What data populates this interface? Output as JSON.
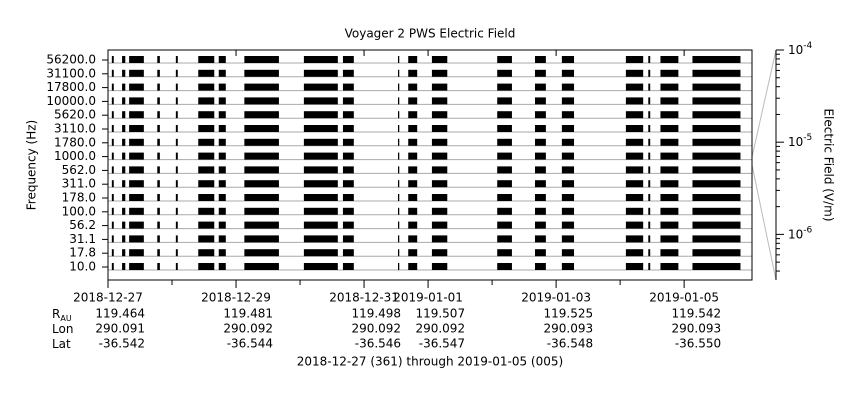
{
  "chart_data": {
    "type": "spectrogram",
    "title": "Voyager 2 PWS Electric Field",
    "ylabel": "Frequency (Hz)",
    "y2label": "Electric Field (V/m)",
    "footer": "2018-12-27 (361) through 2019-01-05 (005)",
    "channels": [
      "56200.0",
      "31100.0",
      "17800.0",
      "10000.0",
      "5620.0",
      "3110.0",
      "1780.0",
      "1000.0",
      "562.0",
      "311.0",
      "178.0",
      "100.0",
      "56.2",
      "31.1",
      "17.8",
      "10.0"
    ],
    "xlim": [
      0,
      10.06
    ],
    "xticks": [
      {
        "value": 0,
        "label": "2018-12-27"
      },
      {
        "value": 2,
        "label": "2018-12-29"
      },
      {
        "value": 4,
        "label": "2018-12-31"
      },
      {
        "value": 5,
        "label": "2019-01-01"
      },
      {
        "value": 7,
        "label": "2019-01-03"
      },
      {
        "value": 9,
        "label": "2019-01-05"
      }
    ],
    "minor_xticks": [
      1,
      3,
      6,
      8
    ],
    "y2lim": [
      3.2e-07,
      0.0001
    ],
    "y2log": true,
    "y2ticks": [
      {
        "value": 0.0001,
        "label": "10^-4"
      },
      {
        "value": 1e-05,
        "label": "10^-5"
      },
      {
        "value": 1e-06,
        "label": "10^-6"
      }
    ],
    "color": "#000000",
    "grid": true,
    "segments": [
      [
        0.06,
        0.09
      ],
      [
        0.22,
        0.27
      ],
      [
        0.33,
        0.56
      ],
      [
        0.77,
        0.81
      ],
      [
        1.06,
        1.09
      ],
      [
        1.41,
        1.66
      ],
      [
        1.73,
        1.84
      ],
      [
        2.13,
        2.67
      ],
      [
        3.06,
        3.59
      ],
      [
        3.67,
        3.84
      ],
      [
        4.53,
        4.55
      ],
      [
        4.69,
        4.83
      ],
      [
        5.06,
        5.3
      ],
      [
        6.08,
        6.31
      ],
      [
        6.67,
        6.84
      ],
      [
        7.09,
        7.28
      ],
      [
        8.09,
        8.36
      ],
      [
        8.44,
        8.47
      ],
      [
        8.63,
        8.91
      ],
      [
        9.13,
        9.88
      ]
    ],
    "ephemeris": [
      {
        "label": "R",
        "sub": "AU",
        "values": [
          "119.464",
          "119.481",
          "119.498",
          "119.507",
          "119.525",
          "119.542"
        ]
      },
      {
        "label": "Lon",
        "values": [
          "290.091",
          "290.092",
          "290.092",
          "290.092",
          "290.093",
          "290.093"
        ]
      },
      {
        "label": "Lat",
        "values": [
          "-36.542",
          "-36.544",
          "-36.546",
          "-36.547",
          "-36.548",
          "-36.550"
        ]
      }
    ]
  }
}
